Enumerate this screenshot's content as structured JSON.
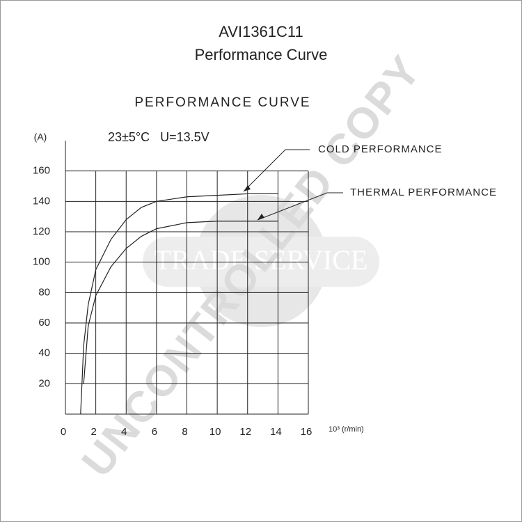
{
  "chart_data": {
    "type": "line",
    "title": "AVI1361C11",
    "subtitle": "Performance Curve",
    "chart_title": "PERFORMANCE CURVE",
    "y_label": "(A)",
    "x_label": "10³ (r/min)",
    "conditions": "23±5°C   U=13.5V",
    "watermarks": [
      "TRADE SERVICE",
      "UNCONTROLLED COPY"
    ],
    "x": [
      1.0,
      1.2,
      1.5,
      2,
      3,
      4,
      5,
      6,
      8,
      10,
      12,
      14
    ],
    "series": [
      {
        "name": "COLD PERFORMANCE",
        "color": "#222222",
        "values": [
          0,
          45,
          72,
          95,
          115,
          128,
          136,
          140,
          143,
          144,
          145,
          145
        ]
      },
      {
        "name": "THERMAL PERFORMANCE",
        "color": "#222222",
        "values": [
          null,
          20,
          58,
          78,
          97,
          109,
          117,
          122,
          126,
          127,
          127,
          127
        ]
      }
    ],
    "xlim": [
      0,
      16
    ],
    "xticks": [
      0,
      2,
      4,
      6,
      8,
      10,
      12,
      14,
      16
    ],
    "ylim": [
      0,
      180
    ],
    "yticks": [
      20,
      40,
      60,
      80,
      100,
      120,
      140,
      160
    ],
    "grid": true
  }
}
